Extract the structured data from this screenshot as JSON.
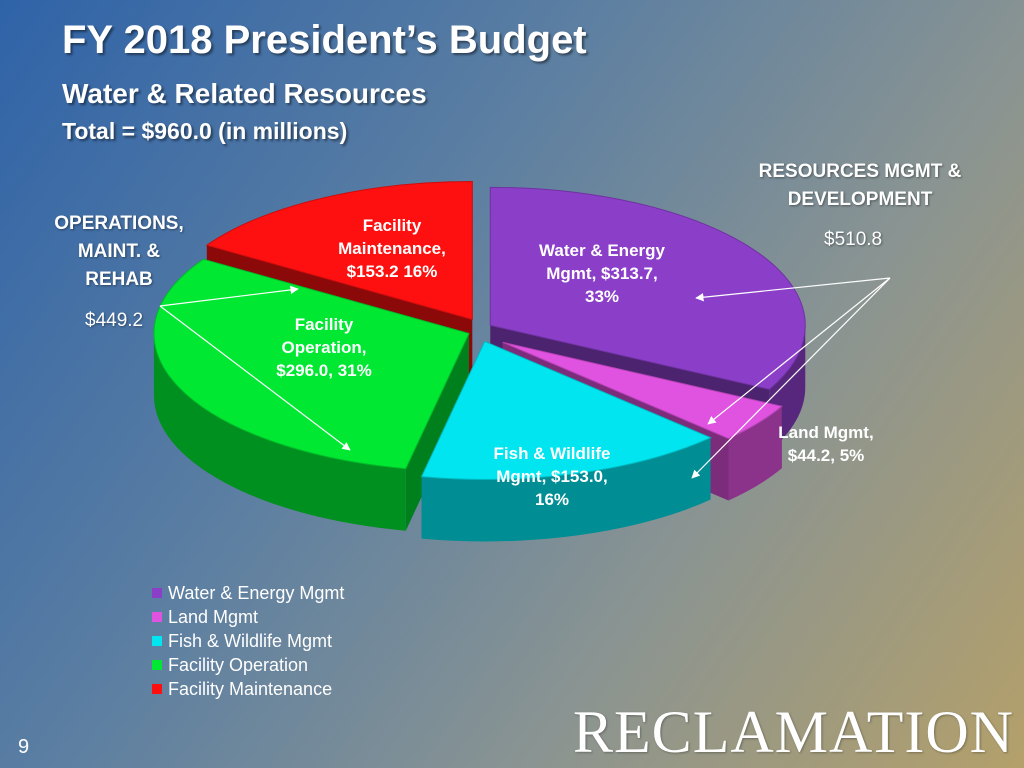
{
  "slide": {
    "title": "FY 2018 President’s Budget",
    "subtitle": "Water & Related Resources",
    "total": "Total = $960.0 (in millions)",
    "page_number": "9",
    "logo": "RECLAMATION"
  },
  "groups": {
    "resources": {
      "label_line1": "RESOURCES MGMT &",
      "label_line2": "DEVELOPMENT",
      "amount": "$510.8"
    },
    "operations": {
      "label_line1": "OPERATIONS,",
      "label_line2": "MAINT. &",
      "label_line3": "REHAB",
      "amount": "$449.2"
    }
  },
  "colors": {
    "water_energy": "#8b3fc8",
    "land": "#e052e0",
    "fish_wildlife": "#00e5ef",
    "facility_operation": "#00e832",
    "facility_maintenance": "#ff1010"
  },
  "chart_data": {
    "type": "pie",
    "title": "",
    "units": "$ millions",
    "slices": [
      {
        "name": "Water & Energy Mgmt",
        "value": 313.7,
        "percent": 33,
        "label_lines": [
          "Water & Energy",
          "Mgmt, $313.7,",
          "33%"
        ]
      },
      {
        "name": "Land Mgmt",
        "value": 44.2,
        "percent": 5,
        "label_lines": [
          "Land Mgmt,",
          "$44.2, 5%"
        ]
      },
      {
        "name": "Fish & Wildlife Mgmt",
        "value": 153.0,
        "percent": 16,
        "label_lines": [
          "Fish & Wildlife",
          "Mgmt, $153.0,",
          "16%"
        ]
      },
      {
        "name": "Facility Operation",
        "value": 296.0,
        "percent": 31,
        "label_lines": [
          "Facility",
          "Operation,",
          "$296.0, 31%"
        ]
      },
      {
        "name": "Facility Maintenance",
        "value": 153.2,
        "percent": 16,
        "label_lines": [
          "Facility",
          "Maintenance,",
          "$153.2 16%"
        ]
      }
    ],
    "legend": [
      "Water & Energy Mgmt",
      "Land Mgmt",
      "Fish & Wildlife Mgmt",
      "Facility Operation",
      "Facility Maintenance"
    ],
    "legend_position": "bottom-left",
    "exploded": true,
    "style": "3d"
  }
}
